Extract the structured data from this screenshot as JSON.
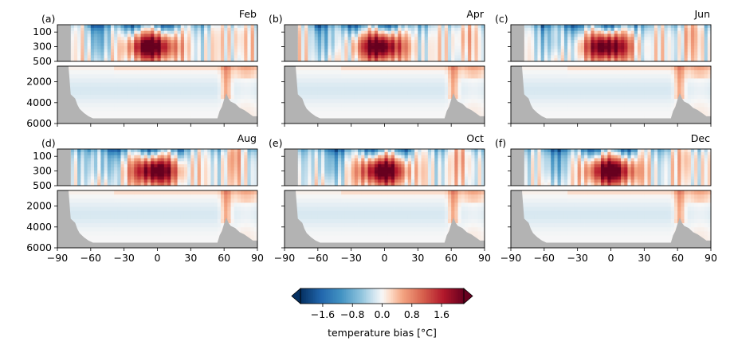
{
  "chart_data": {
    "type": "heatmap",
    "panels": [
      {
        "letter": "(a)",
        "month": "Feb"
      },
      {
        "letter": "(b)",
        "month": "Apr"
      },
      {
        "letter": "(c)",
        "month": "Jun"
      },
      {
        "letter": "(d)",
        "month": "Aug"
      },
      {
        "letter": "(e)",
        "month": "Oct"
      },
      {
        "letter": "(f)",
        "month": "Dec"
      }
    ],
    "xticks": [
      -90,
      -60,
      -30,
      0,
      30,
      60,
      90
    ],
    "xtick_labels": [
      "−90",
      "−60",
      "−30",
      "0",
      "30",
      "60",
      "90"
    ],
    "xlim": [
      -90,
      90
    ],
    "upper_depth_range": [
      0,
      500
    ],
    "upper_yticks": [
      100,
      300,
      500
    ],
    "upper_ytick_labels": [
      "100",
      "300",
      "500"
    ],
    "lower_depth_range": [
      500,
      6000
    ],
    "lower_yticks": [
      2000,
      4000,
      6000
    ],
    "lower_ytick_labels": [
      "2000",
      "4000",
      "6000"
    ],
    "colorbar": {
      "label": "temperature bias [°C]",
      "vmin": -2.2,
      "vmax": 2.2,
      "ticks": [
        -1.6,
        -0.8,
        0.0,
        0.8,
        1.6
      ],
      "tick_labels": [
        "−1.6",
        "−0.8",
        "0.0",
        "0.8",
        "1.6"
      ],
      "extend": "both",
      "colormap": "RdBu_r"
    },
    "land_mask": {
      "color": "#b3b3b3",
      "southern_edge_lat": -78,
      "bottom_depth": 5500,
      "southern_slope": [
        [
          -90,
          500
        ],
        [
          -80,
          500
        ],
        [
          -78,
          3200
        ],
        [
          -74,
          3600
        ],
        [
          -72,
          4200
        ],
        [
          -70,
          4600
        ],
        [
          -66,
          5000
        ],
        [
          -62,
          5300
        ],
        [
          -58,
          5500
        ]
      ],
      "northern_slope": [
        [
          54,
          5500
        ],
        [
          56,
          4800
        ],
        [
          58,
          4400
        ],
        [
          60,
          3700
        ],
        [
          62,
          3100
        ],
        [
          64,
          3600
        ],
        [
          66,
          3900
        ],
        [
          70,
          4100
        ],
        [
          74,
          4500
        ],
        [
          78,
          4700
        ],
        [
          82,
          5000
        ],
        [
          86,
          5300
        ],
        [
          90,
          5300
        ]
      ]
    },
    "field_description": {
      "surface_cold_bias": {
        "lat_range": [
          -60,
          20
        ],
        "depth_range": [
          0,
          150
        ],
        "peak": -1.6
      },
      "tropical_warm_bias": {
        "lat_range": [
          -25,
          15
        ],
        "depth_range": [
          50,
          500
        ],
        "peak": 2.2
      },
      "deep_bias_magnitude": 0.3,
      "arctic_warm_bias": {
        "lat_range": [
          60,
          90
        ],
        "depth_range": [
          0,
          1200
        ],
        "peak": 0.8
      }
    }
  }
}
